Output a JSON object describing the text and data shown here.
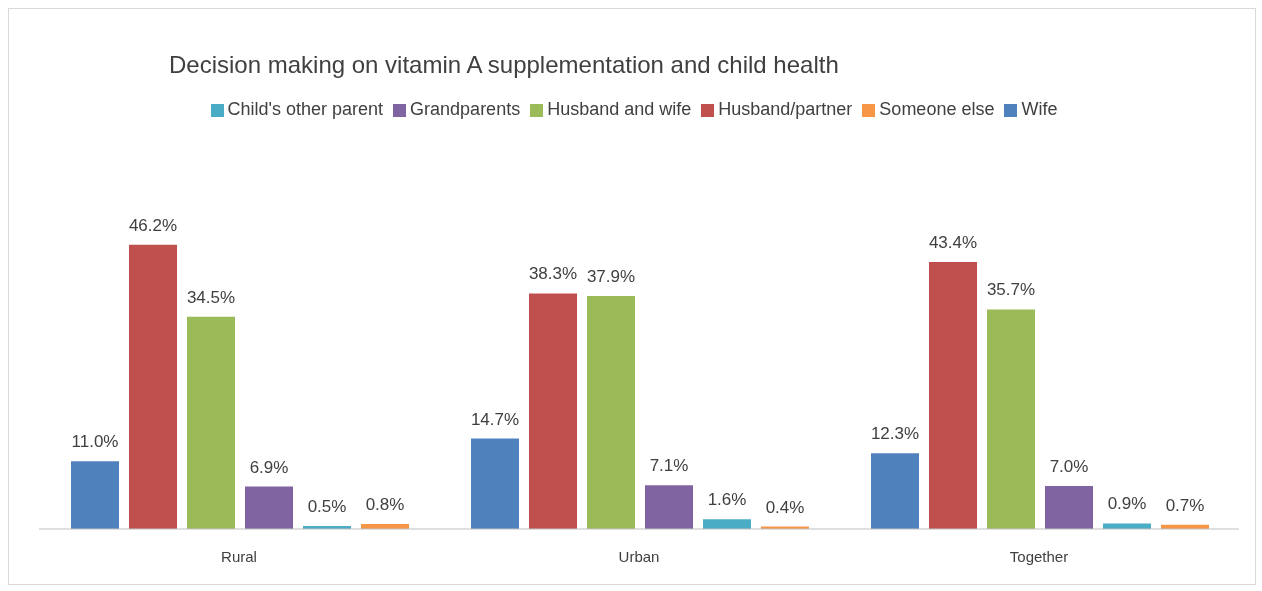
{
  "chart_data": {
    "type": "bar",
    "title": "Decision making on vitamin A supplementation and child health",
    "categories": [
      "Rural",
      "Urban",
      "Together"
    ],
    "legend": "top",
    "series": [
      {
        "name": "Wife",
        "color": "#4f81bd",
        "values": [
          11.0,
          14.7,
          12.3
        ],
        "value_labels": [
          "11.0%",
          "14.7%",
          "12.3%"
        ]
      },
      {
        "name": "Husband/partner",
        "color": "#c0504d",
        "values": [
          46.2,
          38.3,
          43.4
        ],
        "value_labels": [
          "46.2%",
          "38.3%",
          "43.4%"
        ]
      },
      {
        "name": "Husband and wife",
        "color": "#9bbb59",
        "values": [
          34.5,
          37.9,
          35.7
        ],
        "value_labels": [
          "34.5%",
          "37.9%",
          "35.7%"
        ]
      },
      {
        "name": "Grandparents",
        "color": "#8064a2",
        "values": [
          6.9,
          7.1,
          7.0
        ],
        "value_labels": [
          "6.9%",
          "7.1%",
          "7.0%"
        ]
      },
      {
        "name": "Child's other parent",
        "color": "#4bacc6",
        "values": [
          0.5,
          1.6,
          0.9
        ],
        "value_labels": [
          "0.5%",
          "1.6%",
          "0.9%"
        ]
      },
      {
        "name": "Someone else",
        "color": "#f79646",
        "values": [
          0.8,
          0.4,
          0.7
        ],
        "value_labels": [
          "0.8%",
          "0.4%",
          "0.7%"
        ]
      }
    ]
  }
}
